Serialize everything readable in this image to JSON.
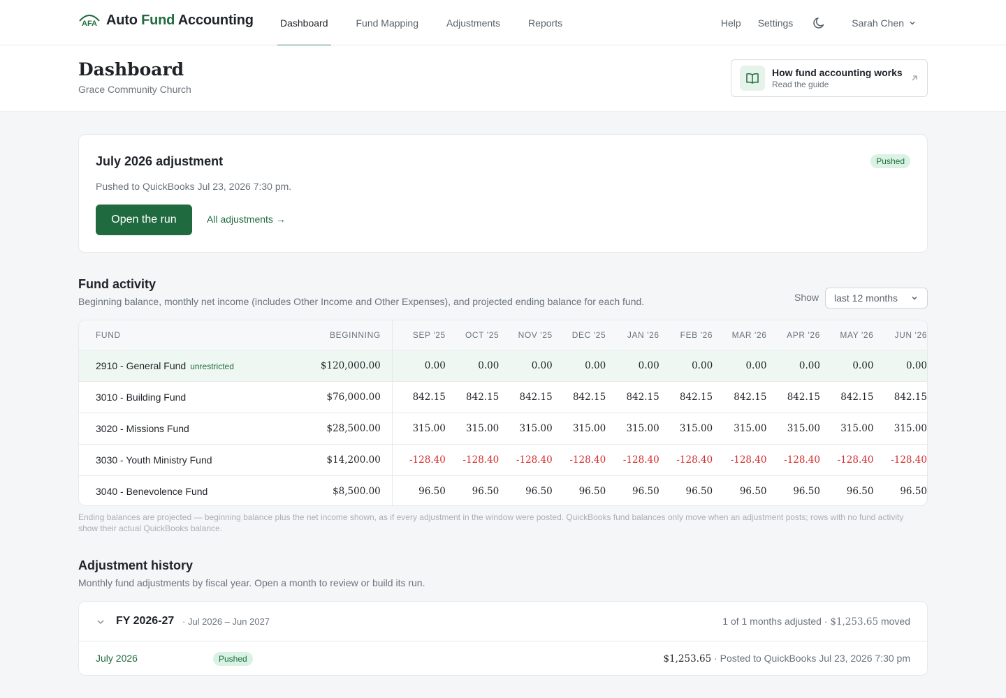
{
  "app": {
    "brand_part1": "Auto",
    "brand_part2": "Fund",
    "brand_part3": "Accounting",
    "logo_text": "AFA",
    "accent_color": "#1f6b3f"
  },
  "nav": {
    "tabs": [
      "Dashboard",
      "Fund Mapping",
      "Adjustments",
      "Reports"
    ],
    "active_tab": "Dashboard",
    "help": "Help",
    "settings": "Settings",
    "user_name": "Sarah Chen"
  },
  "header": {
    "title": "Dashboard",
    "subtitle": "Grace Community Church",
    "guide_title": "How fund accounting works",
    "guide_sub": "Read the guide"
  },
  "adjustment": {
    "title": "July 2026 adjustment",
    "status": "Pushed",
    "description": "Pushed to QuickBooks Jul 23, 2026 7:30 pm.",
    "open_button": "Open the run",
    "all_link": "All adjustments →"
  },
  "fund_activity": {
    "title": "Fund activity",
    "subtitle": "Beginning balance, monthly net income (includes Other Income and Other Expenses), and projected ending balance for each fund.",
    "show_label": "Show",
    "show_value": "last 12 months",
    "columns": {
      "fund": "FUND",
      "beginning": "BEGINNING",
      "months": [
        "SEP '25",
        "OCT '25",
        "NOV '25",
        "DEC '25",
        "JAN '26",
        "FEB '26",
        "MAR '26",
        "APR '26",
        "MAY '26",
        "JUN '26"
      ]
    },
    "rows": [
      {
        "name": "2910 - General Fund",
        "tag": "unrestricted",
        "beginning": "$120,000.00",
        "values": [
          "0.00",
          "0.00",
          "0.00",
          "0.00",
          "0.00",
          "0.00",
          "0.00",
          "0.00",
          "0.00",
          "0.00"
        ],
        "negative": false
      },
      {
        "name": "3010 - Building Fund",
        "tag": "",
        "beginning": "$76,000.00",
        "values": [
          "842.15",
          "842.15",
          "842.15",
          "842.15",
          "842.15",
          "842.15",
          "842.15",
          "842.15",
          "842.15",
          "842.15"
        ],
        "negative": false
      },
      {
        "name": "3020 - Missions Fund",
        "tag": "",
        "beginning": "$28,500.00",
        "values": [
          "315.00",
          "315.00",
          "315.00",
          "315.00",
          "315.00",
          "315.00",
          "315.00",
          "315.00",
          "315.00",
          "315.00"
        ],
        "negative": false
      },
      {
        "name": "3030 - Youth Ministry Fund",
        "tag": "",
        "beginning": "$14,200.00",
        "values": [
          "-128.40",
          "-128.40",
          "-128.40",
          "-128.40",
          "-128.40",
          "-128.40",
          "-128.40",
          "-128.40",
          "-128.40",
          "-128.40"
        ],
        "negative": true
      },
      {
        "name": "3040 - Benevolence Fund",
        "tag": "",
        "beginning": "$8,500.00",
        "values": [
          "96.50",
          "96.50",
          "96.50",
          "96.50",
          "96.50",
          "96.50",
          "96.50",
          "96.50",
          "96.50",
          "96.50"
        ],
        "negative": false
      }
    ],
    "footnote": "Ending balances are projected — beginning balance plus the net income shown, as if every adjustment in the window were posted. QuickBooks fund balances only move when an adjustment posts; rows with no fund activity show their actual QuickBooks balance."
  },
  "history": {
    "title": "Adjustment history",
    "subtitle": "Monthly fund adjustments by fiscal year. Open a month to review or build its run.",
    "fy_label": "FY 2026-27",
    "fy_range": "· Jul 2026 – Jun 2027",
    "fy_summary_prefix": "1 of 1 months adjusted · ",
    "fy_summary_amount": "$1,253.65",
    "fy_summary_suffix": " moved",
    "month_label": "July 2026",
    "month_status": "Pushed",
    "month_amount": "$1,253.65",
    "month_detail": " · Posted to QuickBooks Jul 23, 2026 7:30 pm"
  }
}
